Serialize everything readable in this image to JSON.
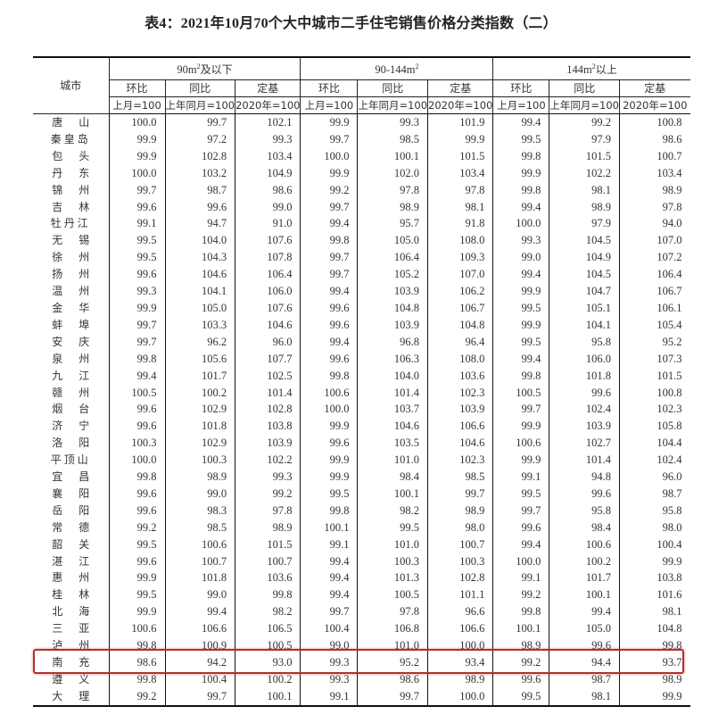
{
  "title": "表4：2021年10月70个大中城市二手住宅销售价格分类指数（二）",
  "header": {
    "city": "城市",
    "groups": [
      {
        "label": "90m",
        "sup": "2",
        "suffix": "及以下"
      },
      {
        "label": "90-144m",
        "sup": "2",
        "suffix": ""
      },
      {
        "label": "144m",
        "sup": "2",
        "suffix": "以上"
      }
    ],
    "metrics": [
      "环比",
      "同比",
      "定基"
    ],
    "bases": [
      "上月=100",
      "上年同月=100",
      "2020年=100"
    ]
  },
  "highlight_color": "#b5302a",
  "highlighted_city": "南充",
  "rows": [
    {
      "city": "唐山",
      "v": [
        "100.0",
        "99.7",
        "102.1",
        "99.9",
        "99.3",
        "101.9",
        "99.4",
        "99.2",
        "100.8"
      ]
    },
    {
      "city": "秦皇岛",
      "v": [
        "99.9",
        "97.2",
        "99.3",
        "99.7",
        "98.5",
        "99.9",
        "99.5",
        "97.9",
        "98.6"
      ]
    },
    {
      "city": "包头",
      "v": [
        "99.9",
        "102.8",
        "103.4",
        "100.0",
        "100.1",
        "101.5",
        "99.8",
        "101.5",
        "100.7"
      ]
    },
    {
      "city": "丹东",
      "v": [
        "100.0",
        "103.2",
        "104.9",
        "99.9",
        "102.0",
        "103.4",
        "99.9",
        "102.2",
        "103.4"
      ]
    },
    {
      "city": "锦州",
      "v": [
        "99.7",
        "98.7",
        "98.6",
        "99.2",
        "97.8",
        "97.8",
        "99.8",
        "98.1",
        "98.9"
      ]
    },
    {
      "city": "吉林",
      "v": [
        "99.6",
        "99.6",
        "99.0",
        "99.7",
        "98.9",
        "98.1",
        "99.4",
        "98.9",
        "97.8"
      ]
    },
    {
      "city": "牡丹江",
      "v": [
        "99.1",
        "94.7",
        "91.0",
        "99.4",
        "95.7",
        "91.8",
        "100.0",
        "97.9",
        "94.0"
      ]
    },
    {
      "city": "无锡",
      "v": [
        "99.5",
        "104.0",
        "107.6",
        "99.8",
        "105.0",
        "108.0",
        "99.3",
        "104.5",
        "107.0"
      ]
    },
    {
      "city": "徐州",
      "v": [
        "99.5",
        "104.3",
        "107.8",
        "99.7",
        "106.4",
        "109.3",
        "99.0",
        "104.9",
        "107.2"
      ]
    },
    {
      "city": "扬州",
      "v": [
        "99.6",
        "104.6",
        "106.4",
        "99.7",
        "105.2",
        "107.0",
        "99.4",
        "104.5",
        "106.4"
      ]
    },
    {
      "city": "温州",
      "v": [
        "99.3",
        "104.1",
        "106.0",
        "99.4",
        "103.9",
        "106.2",
        "99.9",
        "104.7",
        "106.7"
      ]
    },
    {
      "city": "金华",
      "v": [
        "99.9",
        "105.0",
        "107.6",
        "99.6",
        "104.8",
        "106.7",
        "99.5",
        "105.1",
        "106.1"
      ]
    },
    {
      "city": "蚌埠",
      "v": [
        "99.7",
        "103.3",
        "104.6",
        "99.6",
        "103.9",
        "104.8",
        "99.9",
        "104.1",
        "105.4"
      ]
    },
    {
      "city": "安庆",
      "v": [
        "99.7",
        "96.2",
        "96.0",
        "99.4",
        "96.8",
        "96.4",
        "99.5",
        "95.8",
        "95.2"
      ]
    },
    {
      "city": "泉州",
      "v": [
        "99.8",
        "105.6",
        "107.7",
        "99.6",
        "106.3",
        "108.0",
        "99.4",
        "106.0",
        "107.3"
      ]
    },
    {
      "city": "九江",
      "v": [
        "99.4",
        "101.7",
        "102.5",
        "99.8",
        "104.0",
        "103.6",
        "99.8",
        "101.8",
        "101.5"
      ]
    },
    {
      "city": "赣州",
      "v": [
        "100.5",
        "100.2",
        "101.4",
        "100.6",
        "101.4",
        "102.3",
        "100.5",
        "99.6",
        "100.8"
      ]
    },
    {
      "city": "烟台",
      "v": [
        "99.6",
        "102.9",
        "102.8",
        "100.0",
        "103.7",
        "103.9",
        "99.7",
        "102.4",
        "102.3"
      ]
    },
    {
      "city": "济宁",
      "v": [
        "99.6",
        "101.8",
        "103.8",
        "99.9",
        "104.6",
        "106.6",
        "99.9",
        "103.9",
        "105.8"
      ]
    },
    {
      "city": "洛阳",
      "v": [
        "100.3",
        "102.9",
        "103.9",
        "99.6",
        "103.5",
        "104.6",
        "100.6",
        "102.7",
        "104.4"
      ]
    },
    {
      "city": "平顶山",
      "v": [
        "100.0",
        "100.3",
        "102.2",
        "99.9",
        "101.0",
        "102.3",
        "99.9",
        "101.4",
        "102.4"
      ]
    },
    {
      "city": "宜昌",
      "v": [
        "99.8",
        "98.9",
        "99.3",
        "99.9",
        "98.4",
        "98.5",
        "99.1",
        "94.8",
        "96.0"
      ]
    },
    {
      "city": "襄阳",
      "v": [
        "99.6",
        "99.0",
        "99.2",
        "99.5",
        "100.1",
        "99.7",
        "99.5",
        "99.6",
        "98.7"
      ]
    },
    {
      "city": "岳阳",
      "v": [
        "99.6",
        "98.3",
        "97.8",
        "99.8",
        "98.2",
        "98.9",
        "99.7",
        "95.8",
        "95.8"
      ]
    },
    {
      "city": "常德",
      "v": [
        "99.2",
        "98.5",
        "98.9",
        "100.1",
        "99.5",
        "98.0",
        "99.6",
        "98.4",
        "98.0"
      ]
    },
    {
      "city": "韶关",
      "v": [
        "99.5",
        "100.6",
        "101.5",
        "99.1",
        "101.0",
        "100.7",
        "99.4",
        "100.6",
        "100.4"
      ]
    },
    {
      "city": "湛江",
      "v": [
        "99.6",
        "100.7",
        "100.7",
        "99.4",
        "100.3",
        "100.3",
        "100.0",
        "100.2",
        "99.9"
      ]
    },
    {
      "city": "惠州",
      "v": [
        "99.9",
        "101.8",
        "103.6",
        "99.4",
        "101.3",
        "102.8",
        "99.1",
        "101.7",
        "103.8"
      ]
    },
    {
      "city": "桂林",
      "v": [
        "99.5",
        "99.0",
        "99.8",
        "99.4",
        "100.5",
        "101.1",
        "99.2",
        "100.1",
        "101.6"
      ]
    },
    {
      "city": "北海",
      "v": [
        "99.9",
        "99.4",
        "98.2",
        "99.7",
        "97.8",
        "96.6",
        "99.8",
        "99.4",
        "98.1"
      ]
    },
    {
      "city": "三亚",
      "v": [
        "100.6",
        "106.6",
        "106.5",
        "100.4",
        "106.8",
        "106.6",
        "100.1",
        "105.0",
        "104.8"
      ]
    },
    {
      "city": "泸州",
      "v": [
        "99.8",
        "100.9",
        "100.5",
        "99.0",
        "101.0",
        "100.0",
        "98.9",
        "99.6",
        "99.8"
      ]
    },
    {
      "city": "南充",
      "v": [
        "98.6",
        "94.2",
        "93.0",
        "99.3",
        "95.2",
        "93.4",
        "99.2",
        "94.4",
        "93.7"
      ]
    },
    {
      "city": "遵义",
      "v": [
        "99.8",
        "100.4",
        "100.2",
        "99.3",
        "98.6",
        "98.9",
        "99.6",
        "98.7",
        "98.9"
      ]
    },
    {
      "city": "大理",
      "v": [
        "99.2",
        "99.7",
        "100.1",
        "99.1",
        "99.7",
        "100.0",
        "99.5",
        "98.1",
        "99.9"
      ]
    }
  ]
}
